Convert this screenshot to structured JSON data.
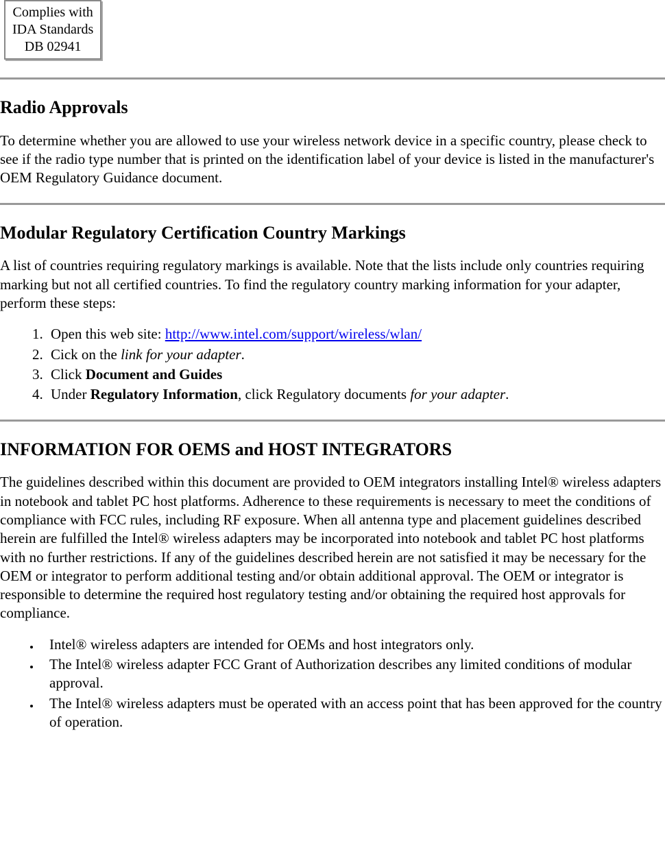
{
  "compliance_box": {
    "line1": "Complies with",
    "line2": "IDA Standards",
    "line3": "DB 02941"
  },
  "section_radio": {
    "heading": "Radio Approvals",
    "body": "To determine whether you are allowed to use your wireless network device in a specific country, please check to see if the radio type number that is printed on the identification label of your device is listed in the manufacturer's OEM Regulatory Guidance document."
  },
  "section_modular": {
    "heading": "Modular Regulatory Certification Country Markings",
    "intro": "A list of countries requiring regulatory markings is available. Note that the lists include only countries requiring marking but not all certified countries. To find the regulatory country marking information for your adapter, perform these steps:",
    "steps": {
      "s1_pre": "Open this web site: ",
      "s1_link": "http://www.intel.com/support/wireless/wlan/",
      "s2_pre": "Cick on the ",
      "s2_italic": "link for your adapter",
      "s2_post": ".",
      "s3_pre": "Click ",
      "s3_bold": "Document and Guides",
      "s4_pre": "Under ",
      "s4_bold": "Regulatory Information",
      "s4_mid": ", click Regulatory documents ",
      "s4_italic": "for your adapter",
      "s4_post": "."
    }
  },
  "section_oem": {
    "heading": "INFORMATION FOR OEMS and HOST INTEGRATORS",
    "body": "The guidelines described within this document are provided to OEM integrators installing Intel® wireless adapters in notebook and tablet PC host platforms. Adherence to these requirements is necessary to meet the conditions of compliance with FCC rules, including RF exposure. When all antenna type and placement guidelines described herein are fulfilled the Intel® wireless adapters may be incorporated into notebook and tablet PC host platforms with no further restrictions. If any of the guidelines described herein are not satisfied it may be necessary for the OEM or integrator to perform additional testing and/or obtain additional approval. The OEM or integrator is responsible to determine the required host regulatory testing and/or obtaining the required host approvals for compliance.",
    "bullets": {
      "b1": "Intel® wireless adapters are intended for OEMs and host integrators only.",
      "b2": "The Intel® wireless adapter FCC Grant of Authorization describes any limited conditions of modular approval.",
      "b3": "The Intel® wireless adapters must be operated with an access point that has been approved for the country of operation."
    }
  }
}
